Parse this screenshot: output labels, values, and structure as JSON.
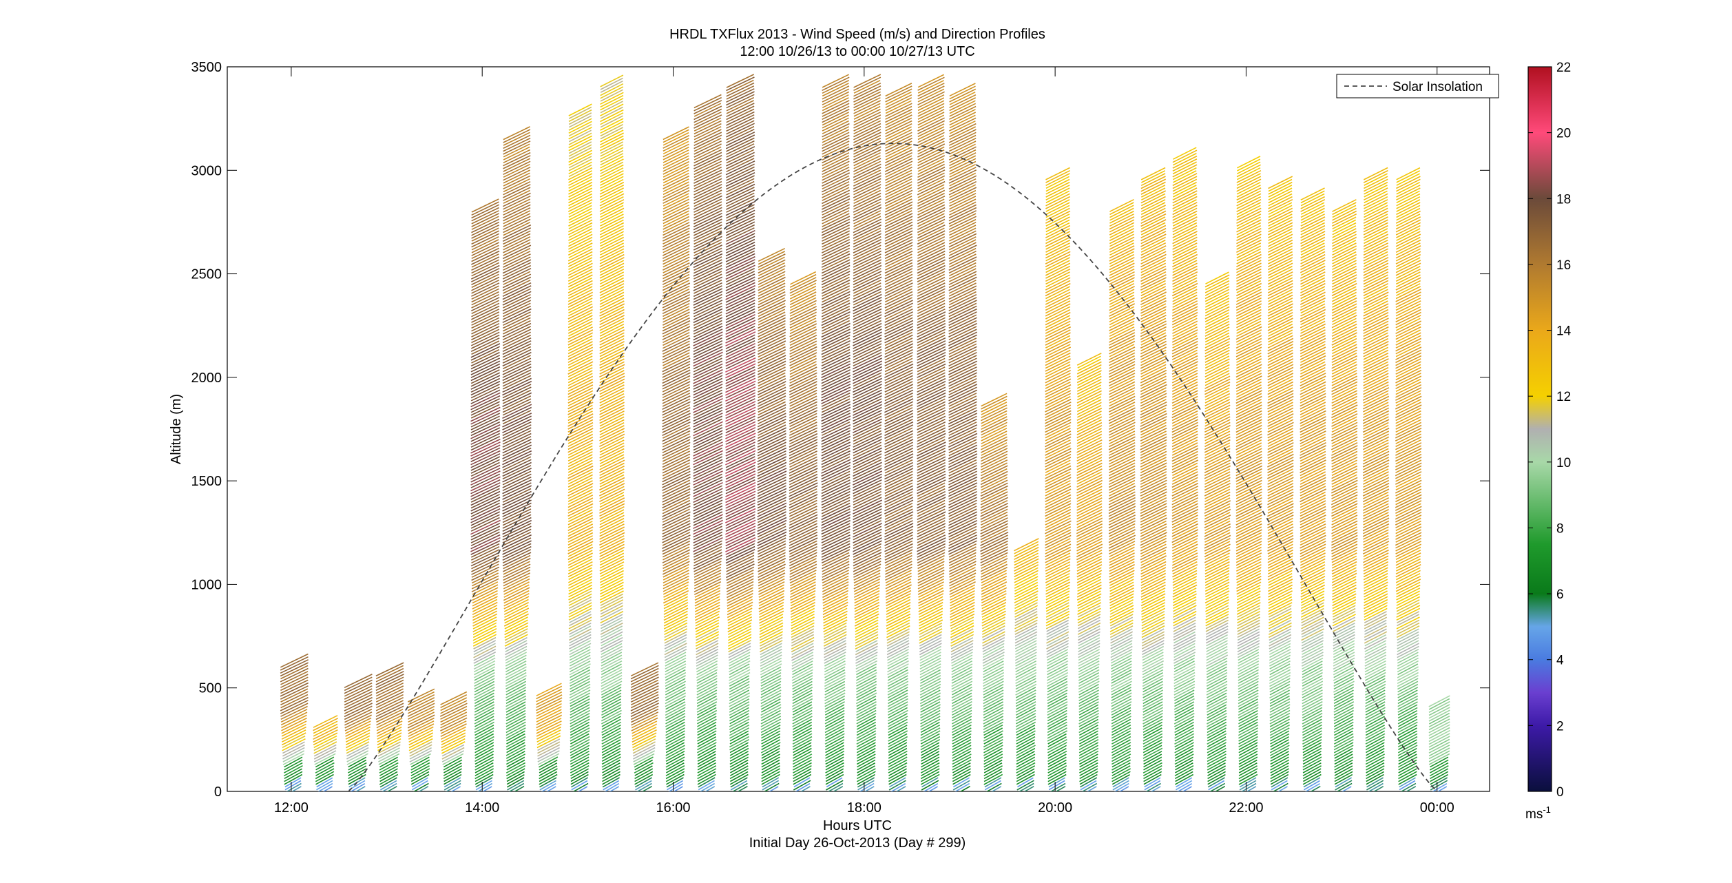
{
  "figure": {
    "title_line1": "HRDL TXFlux 2013 - Wind Speed (m/s) and Direction Profiles",
    "title_line2": "12:00 10/26/13 to 00:00 10/27/13  UTC",
    "xlabel": "Hours UTC",
    "xlabel_sub": "Initial Day 26-Oct-2013 (Day # 299)",
    "ylabel": "Altitude (m)"
  },
  "chart_data": {
    "type": "wind-barb profile time-height",
    "xlim": [
      11.33,
      24.55
    ],
    "ylim": [
      0,
      3500
    ],
    "x_ticks": [
      {
        "value": 12,
        "label": "12:00"
      },
      {
        "value": 14,
        "label": "14:00"
      },
      {
        "value": 16,
        "label": "16:00"
      },
      {
        "value": 18,
        "label": "18:00"
      },
      {
        "value": 20,
        "label": "20:00"
      },
      {
        "value": 22,
        "label": "22:00"
      },
      {
        "value": 24,
        "label": "00:00"
      }
    ],
    "y_ticks": [
      0,
      500,
      1000,
      1500,
      2000,
      2500,
      3000,
      3500
    ],
    "legend": {
      "entry": "Solar Insolation",
      "placement": "top-right",
      "style": "dashed"
    },
    "solar_insolation": {
      "start_hour": 12.6,
      "end_hour": 24.0,
      "peak_hour": 18.3,
      "peak_altitude": 3130
    },
    "colorbar": {
      "min": 0,
      "max": 22,
      "ticks": [
        0,
        2,
        4,
        6,
        8,
        10,
        12,
        14,
        16,
        18,
        20,
        22
      ],
      "unit_label": "ms",
      "unit_exponent": "-1",
      "colors": [
        {
          "v": 0,
          "c": "#0a0f3c"
        },
        {
          "v": 2,
          "c": "#3d1aa8"
        },
        {
          "v": 3,
          "c": "#6a3fd0"
        },
        {
          "v": 4,
          "c": "#4a7be0"
        },
        {
          "v": 5,
          "c": "#66a5e8"
        },
        {
          "v": 6,
          "c": "#0a7a1a"
        },
        {
          "v": 7.5,
          "c": "#1f9a2c"
        },
        {
          "v": 10,
          "c": "#a8d8a8"
        },
        {
          "v": 11,
          "c": "#b0b0b0"
        },
        {
          "v": 12,
          "c": "#f5d000"
        },
        {
          "v": 14,
          "c": "#eaa81a"
        },
        {
          "v": 16,
          "c": "#b07a30"
        },
        {
          "v": 18,
          "c": "#6b4a3a"
        },
        {
          "v": 20,
          "c": "#ff4a7a"
        },
        {
          "v": 22,
          "c": "#b01020"
        }
      ]
    },
    "profiles": [
      {
        "t": 12.0,
        "top": 650,
        "peak": 16
      },
      {
        "t": 12.33,
        "top": 350,
        "peak": 13
      },
      {
        "t": 12.67,
        "top": 550,
        "peak": 16
      },
      {
        "t": 13.0,
        "top": 600,
        "peak": 16
      },
      {
        "t": 13.33,
        "top": 480,
        "peak": 15
      },
      {
        "t": 13.67,
        "top": 460,
        "peak": 15
      },
      {
        "t": 14.0,
        "top": 2850,
        "peak": 17.5
      },
      {
        "t": 14.33,
        "top": 3200,
        "peak": 17
      },
      {
        "t": 14.67,
        "top": 500,
        "peak": 14
      },
      {
        "t": 15.0,
        "top": 3300,
        "peak": 13
      },
      {
        "t": 15.33,
        "top": 3450,
        "peak": 13
      },
      {
        "t": 15.67,
        "top": 600,
        "peak": 16
      },
      {
        "t": 16.0,
        "top": 3200,
        "peak": 16
      },
      {
        "t": 16.33,
        "top": 3350,
        "peak": 17.5
      },
      {
        "t": 16.67,
        "top": 3450,
        "peak": 18
      },
      {
        "t": 17.0,
        "top": 2600,
        "peak": 17
      },
      {
        "t": 17.33,
        "top": 2500,
        "peak": 16.5
      },
      {
        "t": 17.67,
        "top": 3450,
        "peak": 17
      },
      {
        "t": 18.0,
        "top": 3450,
        "peak": 17
      },
      {
        "t": 18.33,
        "top": 3400,
        "peak": 16.5
      },
      {
        "t": 18.67,
        "top": 3450,
        "peak": 16.5
      },
      {
        "t": 19.0,
        "top": 3400,
        "peak": 16.5
      },
      {
        "t": 19.33,
        "top": 1900,
        "peak": 16
      },
      {
        "t": 19.67,
        "top": 1200,
        "peak": 15
      },
      {
        "t": 20.0,
        "top": 3000,
        "peak": 14
      },
      {
        "t": 20.33,
        "top": 2100,
        "peak": 14
      },
      {
        "t": 20.67,
        "top": 2850,
        "peak": 14.5
      },
      {
        "t": 21.0,
        "top": 3000,
        "peak": 14.5
      },
      {
        "t": 21.33,
        "top": 3100,
        "peak": 14
      },
      {
        "t": 21.67,
        "top": 2500,
        "peak": 14
      },
      {
        "t": 22.0,
        "top": 3050,
        "peak": 14
      },
      {
        "t": 22.33,
        "top": 2950,
        "peak": 14
      },
      {
        "t": 22.67,
        "top": 2900,
        "peak": 14
      },
      {
        "t": 23.0,
        "top": 2850,
        "peak": 14
      },
      {
        "t": 23.33,
        "top": 3000,
        "peak": 14
      },
      {
        "t": 23.67,
        "top": 3000,
        "peak": 14
      },
      {
        "t": 24.0,
        "top": 450,
        "peak": 9
      }
    ]
  }
}
